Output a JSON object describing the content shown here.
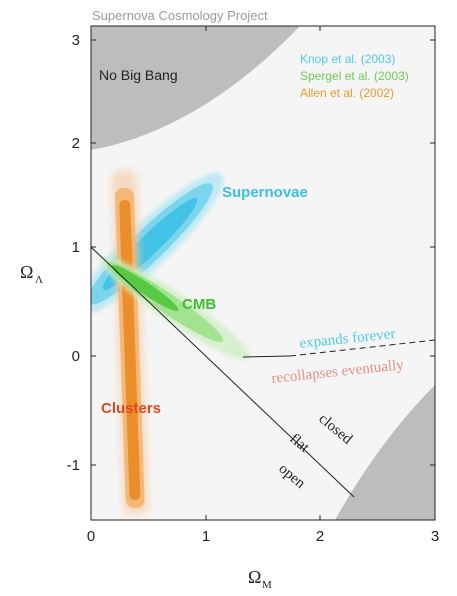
{
  "chart_data": {
    "type": "contour",
    "title": "Supernova Cosmology Project",
    "xlabel_main": "Ω",
    "xlabel_sub": "M",
    "ylabel_main": "Ω",
    "ylabel_sub": "Λ",
    "xlim": [
      0,
      3
    ],
    "ylim": [
      -1.5,
      3.1
    ],
    "xticks": [
      "0",
      "1",
      "2",
      "3"
    ],
    "yticks": [
      "-1",
      "0",
      "1",
      "2",
      "3"
    ],
    "legend": [
      {
        "label": "Knop et al. (2003)",
        "color": "#4fc9e6"
      },
      {
        "label": "Spergel et al. (2003)",
        "color": "#7fd66a"
      },
      {
        "label": "Allen et al. (2002)",
        "color": "#f0a030"
      }
    ],
    "region_labels": {
      "no_big_bang": "No Big Bang",
      "supernovae": "Supernovae",
      "cmb": "CMB",
      "clusters": "Clusters",
      "expands": "expands forever",
      "recollapses": "recollapses eventually",
      "closed": "closed",
      "flat": "flat",
      "open": "open"
    },
    "series": [
      {
        "name": "Supernovae",
        "center": [
          0.48,
          1.05
        ],
        "color": "#4fc9e6"
      },
      {
        "name": "CMB",
        "center": [
          0.35,
          0.68
        ],
        "color": "#7fd66a"
      },
      {
        "name": "Clusters",
        "center": [
          0.3,
          0.3
        ],
        "color": "#f0a030"
      }
    ],
    "flat_line": {
      "x": [
        0,
        2.3
      ],
      "y": [
        1,
        -1.3
      ]
    }
  }
}
